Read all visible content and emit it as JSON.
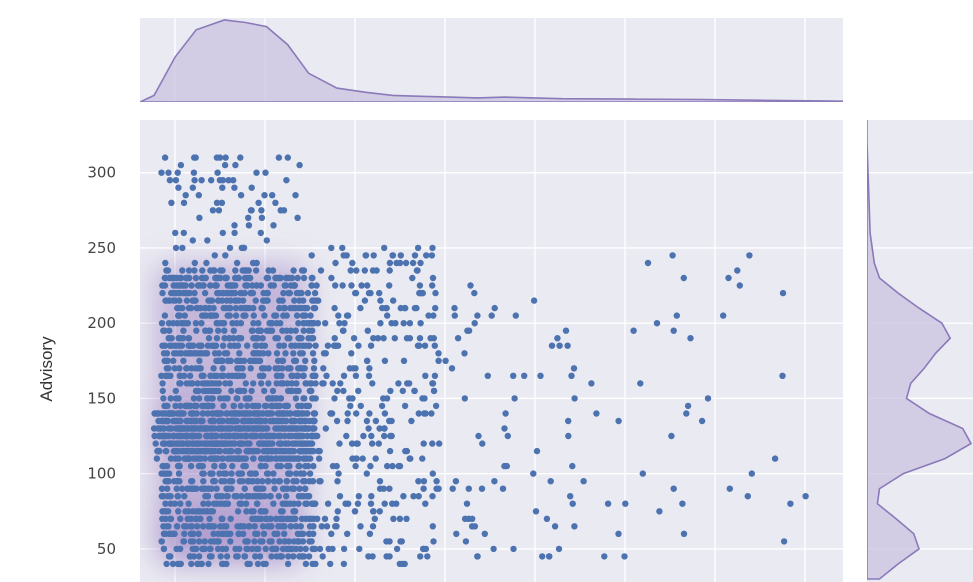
{
  "chart_data": {
    "type": "scatter",
    "kind": "jointplot",
    "xlabel": "",
    "ylabel": "Advisory",
    "ylim": [
      28,
      335
    ],
    "xlim": [
      0,
      1
    ],
    "yticks": [
      300,
      250,
      200,
      150,
      100,
      50
    ],
    "grid": true,
    "colors": {
      "points": "#4c72b0",
      "background": "#eaeaf2",
      "kde_fill": "#cbc2e0",
      "kde_line": "#8a7ab9",
      "hexbin": "#a58cc7",
      "grid": "#ffffff"
    },
    "clusters": [
      {
        "x": [
          0.03,
          0.25
        ],
        "y": [
          40,
          235
        ],
        "n": 1400
      },
      {
        "x": [
          0.02,
          0.25
        ],
        "y": [
          110,
          145
        ],
        "n": 500
      },
      {
        "x": [
          0.03,
          0.23
        ],
        "y": [
          235,
          312
        ],
        "n": 110
      },
      {
        "x": [
          0.24,
          0.42
        ],
        "y": [
          40,
          250
        ],
        "n": 320
      },
      {
        "x": [
          0.42,
          0.62
        ],
        "y": [
          40,
          225
        ],
        "n": 110
      },
      {
        "x": [
          0.62,
          0.95
        ],
        "y": [
          45,
          250
        ],
        "n": 70
      }
    ],
    "x_marginal_density": [
      [
        0.0,
        0.0
      ],
      [
        0.02,
        0.08
      ],
      [
        0.05,
        0.55
      ],
      [
        0.08,
        0.88
      ],
      [
        0.12,
        1.0
      ],
      [
        0.15,
        0.97
      ],
      [
        0.18,
        0.92
      ],
      [
        0.21,
        0.7
      ],
      [
        0.24,
        0.35
      ],
      [
        0.28,
        0.17
      ],
      [
        0.32,
        0.12
      ],
      [
        0.36,
        0.08
      ],
      [
        0.4,
        0.07
      ],
      [
        0.44,
        0.06
      ],
      [
        0.48,
        0.05
      ],
      [
        0.52,
        0.06
      ],
      [
        0.56,
        0.05
      ],
      [
        0.6,
        0.04
      ],
      [
        0.7,
        0.035
      ],
      [
        0.8,
        0.03
      ],
      [
        0.9,
        0.02
      ],
      [
        1.0,
        0.01
      ]
    ],
    "y_marginal_density": [
      [
        30,
        0.12
      ],
      [
        40,
        0.3
      ],
      [
        50,
        0.5
      ],
      [
        60,
        0.45
      ],
      [
        70,
        0.28
      ],
      [
        80,
        0.1
      ],
      [
        90,
        0.12
      ],
      [
        100,
        0.35
      ],
      [
        110,
        0.75
      ],
      [
        120,
        1.0
      ],
      [
        130,
        0.92
      ],
      [
        140,
        0.6
      ],
      [
        150,
        0.38
      ],
      [
        160,
        0.42
      ],
      [
        170,
        0.55
      ],
      [
        180,
        0.66
      ],
      [
        190,
        0.8
      ],
      [
        200,
        0.72
      ],
      [
        210,
        0.5
      ],
      [
        220,
        0.3
      ],
      [
        230,
        0.12
      ],
      [
        240,
        0.07
      ],
      [
        250,
        0.05
      ],
      [
        260,
        0.03
      ],
      [
        280,
        0.02
      ],
      [
        300,
        0.01
      ],
      [
        320,
        0.0
      ],
      [
        335,
        0.0
      ]
    ]
  }
}
